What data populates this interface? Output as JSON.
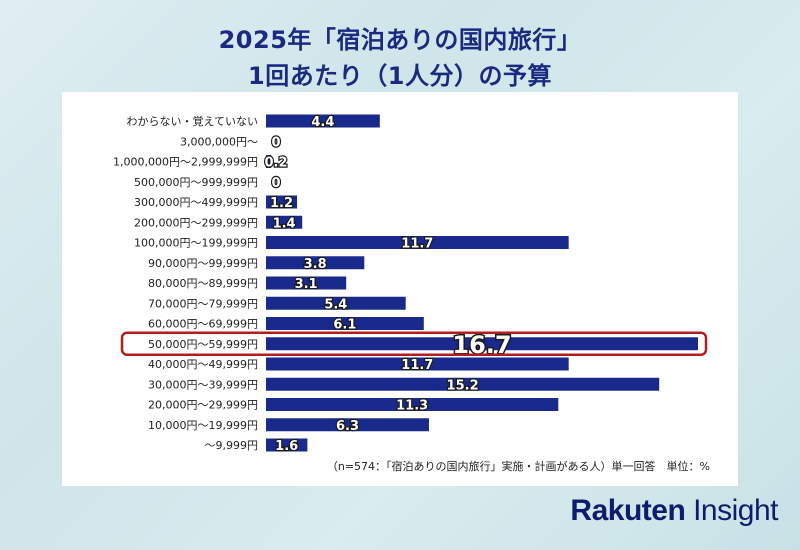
{
  "title": {
    "line1": "2025年「宿泊ありの国内旅行」",
    "line2": "1回あたり（1人分）の予算"
  },
  "footnote": "（n=574：「宿泊ありの国内旅行」実施・計画がある人）単一回答　単位：%",
  "brand": {
    "part1": "Rakuten",
    "part2": " Insight"
  },
  "colors": {
    "bar": "#1a2a8c",
    "highlight": "#b01e1e",
    "title": "#1a2a80"
  },
  "chart_data": {
    "type": "bar",
    "orientation": "horizontal",
    "title": "2025年「宿泊ありの国内旅行」1回あたり（1人分）の予算",
    "unit": "%",
    "xlim": [
      0,
      16.7
    ],
    "highlight_category": "50,000円～59,999円",
    "categories": [
      "わからない・覚えていない",
      "3,000,000円～",
      "1,000,000円～2,999,999円",
      "500,000円～999,999円",
      "300,000円～499,999円",
      "200,000円～299,999円",
      "100,000円～199,999円",
      "90,000円～99,999円",
      "80,000円～89,999円",
      "70,000円～79,999円",
      "60,000円～69,999円",
      "50,000円～59,999円",
      "40,000円～49,999円",
      "30,000円～39,999円",
      "20,000円～29,999円",
      "10,000円～19,999円",
      "～9,999円"
    ],
    "values": [
      4.4,
      0,
      0.2,
      0,
      1.2,
      1.4,
      11.7,
      3.8,
      3.1,
      5.4,
      6.1,
      16.7,
      11.7,
      15.2,
      11.3,
      6.3,
      1.6
    ]
  }
}
